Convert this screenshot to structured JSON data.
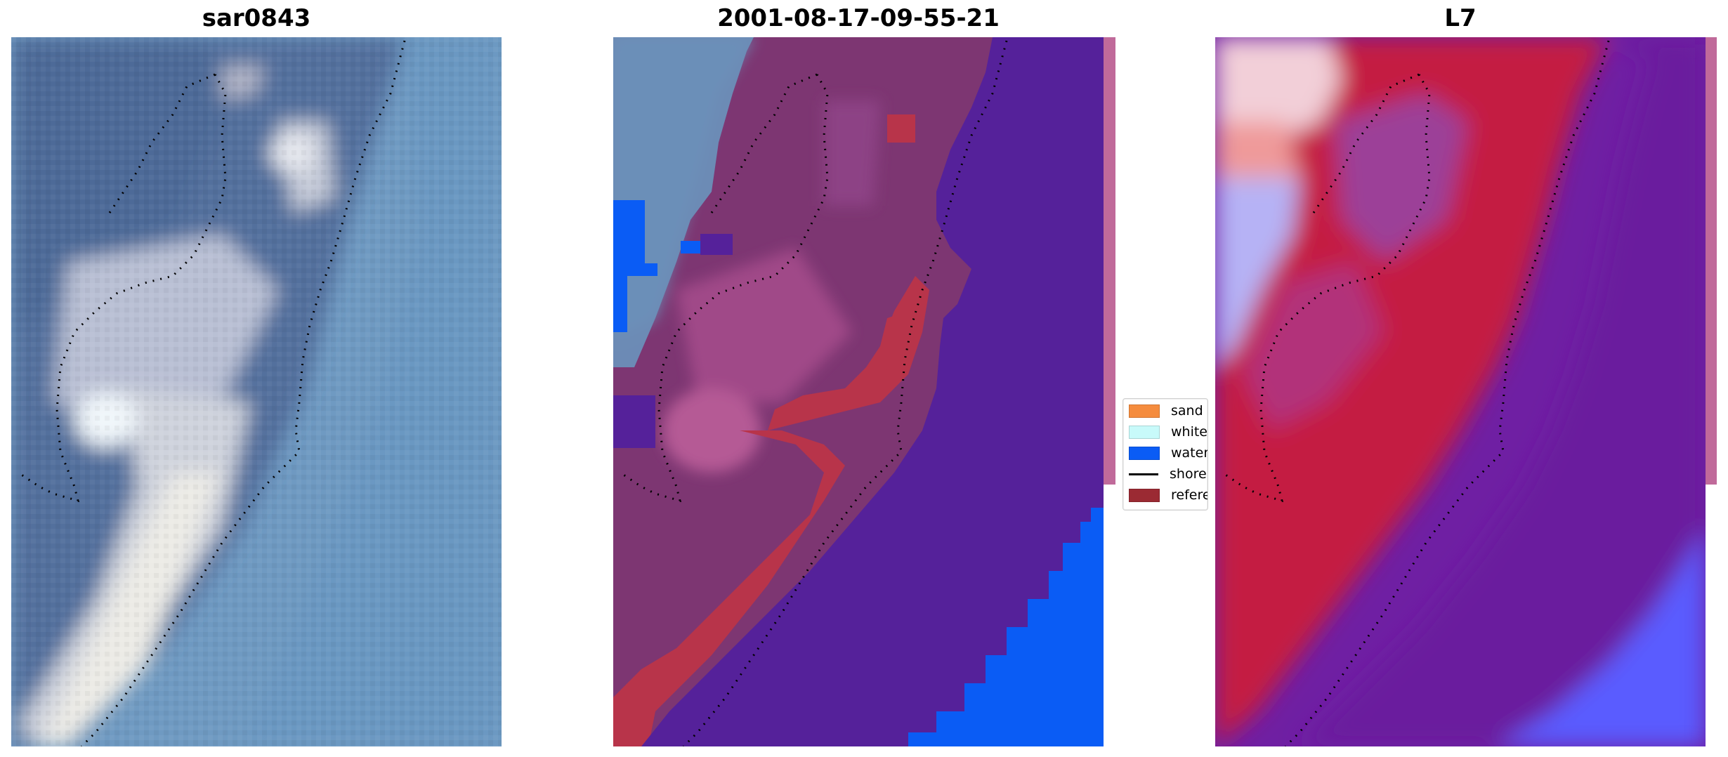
{
  "panels": [
    {
      "id": "rgb",
      "title": "sar0843"
    },
    {
      "id": "classified",
      "title": "2001-08-17-09-55-21"
    },
    {
      "id": "index",
      "title": "L7"
    }
  ],
  "legend": {
    "items": [
      {
        "label": "sand",
        "color": "#f58c3e",
        "kind": "patch"
      },
      {
        "label": "whitew",
        "color": "#c8fafa",
        "kind": "patch"
      },
      {
        "label": "water",
        "color": "#0a5cf5",
        "kind": "patch"
      },
      {
        "label": "shorel",
        "color": "#000000",
        "kind": "line"
      },
      {
        "label": "referer",
        "color": "#9b2a33",
        "kind": "patch"
      }
    ]
  },
  "colors": {
    "sea_rgb": "#6a96bf",
    "land_rgb": "#4f6f9a",
    "surf_rgb": "#d9dbe3",
    "classified_water_class": "#55219a",
    "classified_land": "#8a3a7a",
    "classified_reference": "#b8344a",
    "index_red": "#c41a42",
    "index_purple": "#6f1fa3",
    "index_blue": "#5a5cff"
  }
}
